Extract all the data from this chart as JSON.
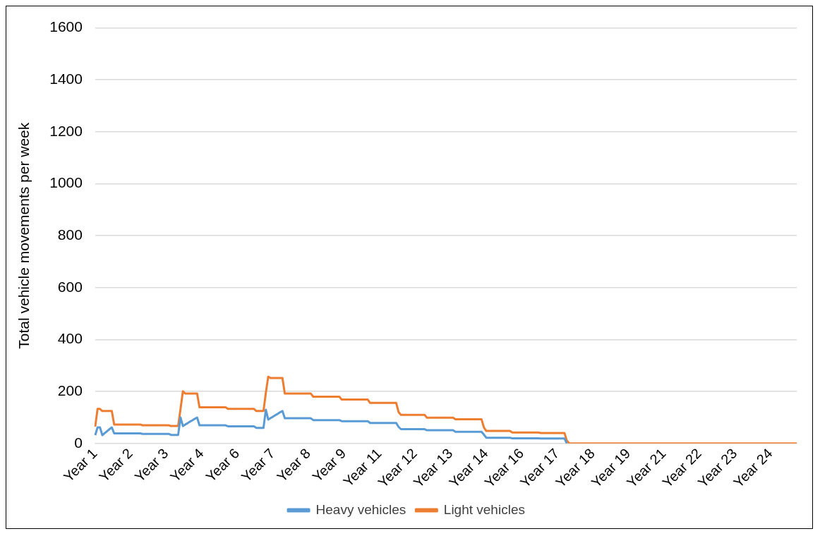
{
  "chart_data": {
    "type": "line",
    "ylabel": "Total vehicle movements per week",
    "ylim": [
      0,
      1600
    ],
    "yticks": [
      0,
      200,
      400,
      600,
      800,
      1000,
      1200,
      1400,
      1600
    ],
    "grid": "y",
    "legend": "bottom",
    "marker": "none",
    "line_style": "solid",
    "categories": [
      "Year 1",
      null,
      null,
      null,
      null,
      null,
      null,
      null,
      null,
      null,
      null,
      null,
      null,
      null,
      null,
      "Year 2",
      null,
      null,
      null,
      null,
      null,
      null,
      null,
      null,
      null,
      null,
      null,
      null,
      null,
      null,
      "Year 3",
      null,
      null,
      null,
      null,
      null,
      null,
      null,
      null,
      null,
      null,
      null,
      null,
      null,
      null,
      "Year 4",
      null,
      null,
      null,
      null,
      null,
      null,
      null,
      null,
      null,
      null,
      null,
      null,
      null,
      null,
      "Year 6",
      null,
      null,
      null,
      null,
      null,
      null,
      null,
      null,
      null,
      null,
      null,
      null,
      null,
      null,
      "Year 7",
      null,
      null,
      null,
      null,
      null,
      null,
      null,
      null,
      null,
      null,
      null,
      null,
      null,
      null,
      "Year 8",
      null,
      null,
      null,
      null,
      null,
      null,
      null,
      null,
      null,
      null,
      null,
      null,
      null,
      null,
      "Year 9",
      null,
      null,
      null,
      null,
      null,
      null,
      null,
      null,
      null,
      null,
      null,
      null,
      null,
      null,
      "Year 11",
      null,
      null,
      null,
      null,
      null,
      null,
      null,
      null,
      null,
      null,
      null,
      null,
      null,
      null,
      "Year 12",
      null,
      null,
      null,
      null,
      null,
      null,
      null,
      null,
      null,
      null,
      null,
      null,
      null,
      null,
      "Year 13",
      null,
      null,
      null,
      null,
      null,
      null,
      null,
      null,
      null,
      null,
      null,
      null,
      null,
      null,
      "Year 14",
      null,
      null,
      null,
      null,
      null,
      null,
      null,
      null,
      null,
      null,
      null,
      null,
      null,
      null,
      "Year 16",
      null,
      null,
      null,
      null,
      null,
      null,
      null,
      null,
      null,
      null,
      null,
      null,
      null,
      null,
      "Year 17",
      null,
      null,
      null,
      null,
      null,
      null,
      null,
      null,
      null,
      null,
      null,
      null,
      null,
      null,
      "Year 18",
      null,
      null,
      null,
      null,
      null,
      null,
      null,
      null,
      null,
      null,
      null,
      null,
      null,
      null,
      "Year 19",
      null,
      null,
      null,
      null,
      null,
      null,
      null,
      null,
      null,
      null,
      null,
      null,
      null,
      null,
      "Year 21",
      null,
      null,
      null,
      null,
      null,
      null,
      null,
      null,
      null,
      null,
      null,
      null,
      null,
      null,
      "Year 22",
      null,
      null,
      null,
      null,
      null,
      null,
      null,
      null,
      null,
      null,
      null,
      null,
      null,
      null,
      "Year 23",
      null,
      null,
      null,
      null,
      null,
      null,
      null,
      null,
      null,
      null,
      null,
      null,
      null,
      null,
      "Year 24",
      null,
      null,
      null,
      null,
      null,
      null,
      null,
      null,
      null,
      null,
      null
    ],
    "series": [
      {
        "name": "Heavy vehicles",
        "color": "#5b9bd5",
        "values": [
          32,
          62,
          62,
          32,
          40,
          47,
          55,
          62,
          39,
          39,
          39,
          39,
          39,
          39,
          39,
          39,
          39,
          39,
          39,
          39,
          37,
          37,
          37,
          37,
          37,
          37,
          37,
          37,
          37,
          37,
          37,
          37,
          33,
          33,
          33,
          33,
          100,
          67,
          73,
          78,
          84,
          89,
          95,
          100,
          70,
          70,
          70,
          70,
          70,
          70,
          70,
          70,
          70,
          70,
          70,
          70,
          66,
          66,
          66,
          66,
          66,
          66,
          66,
          66,
          66,
          66,
          66,
          66,
          60,
          60,
          60,
          60,
          130,
          92,
          98,
          103,
          109,
          114,
          120,
          125,
          97,
          97,
          97,
          97,
          97,
          97,
          97,
          97,
          97,
          97,
          97,
          97,
          90,
          90,
          90,
          90,
          90,
          90,
          90,
          90,
          90,
          90,
          90,
          90,
          86,
          86,
          86,
          86,
          86,
          86,
          86,
          86,
          86,
          86,
          86,
          86,
          79,
          79,
          79,
          79,
          79,
          79,
          79,
          79,
          79,
          79,
          79,
          79,
          64,
          55,
          55,
          55,
          55,
          55,
          55,
          55,
          55,
          55,
          55,
          55,
          51,
          51,
          51,
          51,
          51,
          51,
          51,
          51,
          51,
          51,
          51,
          51,
          45,
          45,
          45,
          45,
          45,
          45,
          45,
          45,
          45,
          45,
          45,
          45,
          34,
          22,
          22,
          22,
          22,
          22,
          22,
          22,
          22,
          22,
          22,
          22,
          20,
          20,
          20,
          20,
          20,
          20,
          20,
          20,
          20,
          20,
          20,
          20,
          19,
          19,
          19,
          19,
          19,
          19,
          19,
          19,
          19,
          19,
          19,
          0,
          null,
          null,
          null,
          null,
          null,
          null,
          null,
          null,
          null,
          null,
          null,
          null,
          null,
          null,
          null,
          null,
          null,
          null,
          null,
          null,
          null,
          null,
          null,
          null,
          null,
          null,
          null,
          null,
          null,
          null,
          null,
          null,
          null,
          null,
          null,
          null,
          null,
          null,
          null,
          null,
          null,
          null,
          null,
          null,
          null,
          null,
          null,
          null,
          null,
          null,
          null,
          null,
          null,
          null,
          null,
          null,
          null,
          null,
          null,
          null,
          null,
          null,
          null,
          null,
          null,
          null,
          null,
          null,
          null,
          null,
          null,
          null,
          null,
          null,
          null,
          null,
          null,
          null,
          null,
          null,
          null,
          null,
          null,
          null,
          null,
          null,
          null,
          null,
          null,
          null,
          null,
          null,
          null,
          null,
          null,
          null,
          null
        ]
      },
      {
        "name": "Light vehicles",
        "color": "#ed7d31",
        "values": [
          65,
          133,
          133,
          125,
          125,
          125,
          125,
          125,
          73,
          73,
          73,
          73,
          73,
          73,
          73,
          73,
          73,
          73,
          73,
          73,
          70,
          70,
          70,
          70,
          70,
          70,
          70,
          70,
          70,
          70,
          70,
          70,
          67,
          67,
          67,
          67,
          133,
          201,
          192,
          192,
          192,
          192,
          192,
          192,
          139,
          139,
          139,
          139,
          139,
          139,
          139,
          139,
          139,
          139,
          139,
          139,
          133,
          133,
          133,
          133,
          133,
          133,
          133,
          133,
          133,
          133,
          133,
          133,
          125,
          125,
          125,
          125,
          195,
          257,
          252,
          252,
          252,
          252,
          252,
          252,
          192,
          192,
          192,
          192,
          192,
          192,
          192,
          192,
          192,
          192,
          192,
          192,
          180,
          180,
          180,
          180,
          180,
          180,
          180,
          180,
          180,
          180,
          180,
          180,
          169,
          169,
          169,
          169,
          169,
          169,
          169,
          169,
          169,
          169,
          169,
          169,
          156,
          156,
          156,
          156,
          156,
          156,
          156,
          156,
          156,
          156,
          156,
          156,
          121,
          110,
          110,
          110,
          110,
          110,
          110,
          110,
          110,
          110,
          110,
          110,
          99,
          99,
          99,
          99,
          99,
          99,
          99,
          99,
          99,
          99,
          99,
          99,
          93,
          93,
          93,
          93,
          93,
          93,
          93,
          93,
          93,
          93,
          93,
          93,
          62,
          48,
          48,
          48,
          48,
          48,
          48,
          48,
          48,
          48,
          48,
          48,
          42,
          42,
          42,
          42,
          42,
          42,
          42,
          42,
          42,
          42,
          42,
          42,
          40,
          40,
          40,
          40,
          40,
          40,
          40,
          40,
          40,
          40,
          40,
          11,
          0,
          0,
          0,
          0,
          0,
          0,
          0,
          0,
          0,
          0,
          0,
          0,
          0,
          0,
          0,
          0,
          0,
          0,
          0,
          0,
          0,
          0,
          0,
          0,
          0,
          0,
          0,
          0,
          0,
          0,
          0,
          0,
          0,
          0,
          0,
          0,
          0,
          0,
          0,
          0,
          0,
          0,
          0,
          0,
          0,
          0,
          0,
          0,
          0,
          0,
          0,
          0,
          0,
          0,
          0,
          0,
          0,
          0,
          0,
          0,
          0,
          0,
          0,
          0,
          0,
          0,
          0,
          0,
          0,
          0,
          0,
          0,
          0,
          0,
          0,
          0,
          0,
          0,
          0,
          0,
          0,
          0,
          0,
          0,
          0,
          0,
          0,
          0,
          0,
          0,
          0,
          0,
          0,
          0,
          0,
          0,
          0
        ]
      }
    ]
  }
}
